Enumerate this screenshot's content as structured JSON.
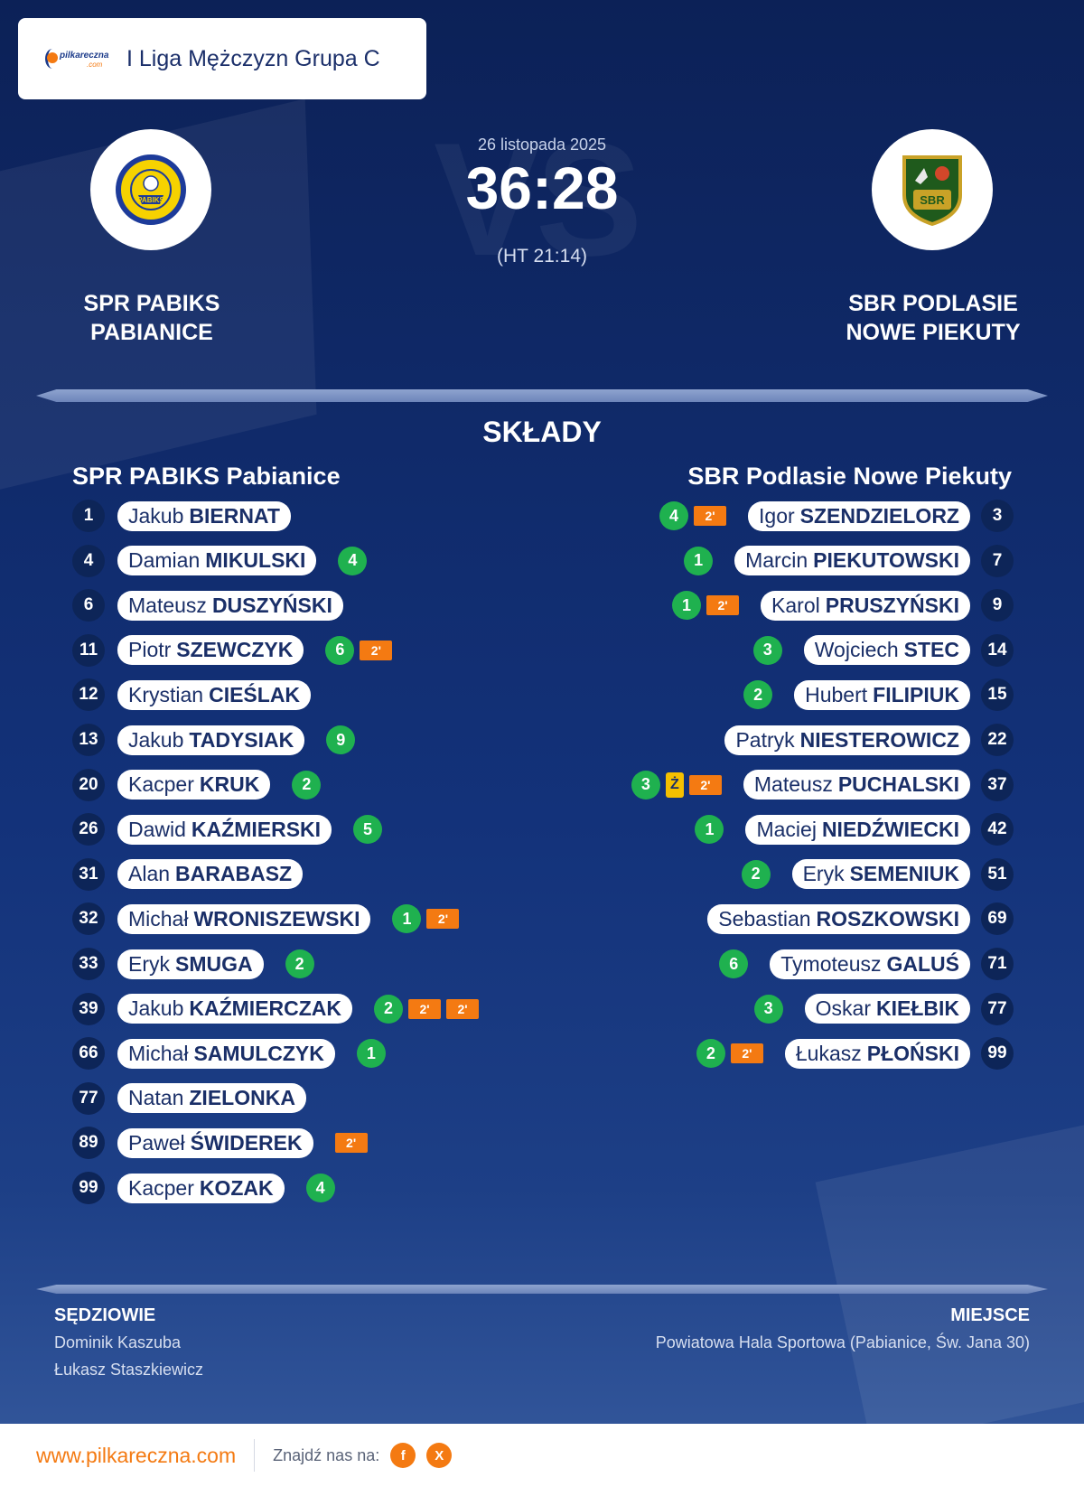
{
  "header": {
    "logo_text": "pilkareczna",
    "logo_sub": ".com",
    "league": "I Liga Mężczyzn Grupa C"
  },
  "match": {
    "date": "26 listopada 2025",
    "score": "36:28",
    "halftime": "(HT 21:14)",
    "watermark": "VS"
  },
  "home": {
    "name_line1": "SPR PABIKS",
    "name_line2": "PABIANICE",
    "title": "SPR PABIKS Pabianice",
    "crest_text": "PABIKS",
    "players": [
      {
        "number": "1",
        "first": "Jakub",
        "last": "BIERNAT",
        "goals": "",
        "yellow": "",
        "pens": []
      },
      {
        "number": "4",
        "first": "Damian",
        "last": "MIKULSKI",
        "goals": "4",
        "yellow": "",
        "pens": []
      },
      {
        "number": "6",
        "first": "Mateusz",
        "last": "DUSZYŃSKI",
        "goals": "",
        "yellow": "",
        "pens": []
      },
      {
        "number": "11",
        "first": "Piotr",
        "last": "SZEWCZYK",
        "goals": "6",
        "yellow": "",
        "pens": [
          "2'"
        ]
      },
      {
        "number": "12",
        "first": "Krystian",
        "last": "CIEŚLAK",
        "goals": "",
        "yellow": "",
        "pens": []
      },
      {
        "number": "13",
        "first": "Jakub",
        "last": "TADYSIAK",
        "goals": "9",
        "yellow": "",
        "pens": []
      },
      {
        "number": "20",
        "first": "Kacper",
        "last": "KRUK",
        "goals": "2",
        "yellow": "",
        "pens": []
      },
      {
        "number": "26",
        "first": "Dawid",
        "last": "KAŹMIERSKI",
        "goals": "5",
        "yellow": "",
        "pens": []
      },
      {
        "number": "31",
        "first": "Alan",
        "last": "BARABASZ",
        "goals": "",
        "yellow": "",
        "pens": []
      },
      {
        "number": "32",
        "first": "Michał",
        "last": "WRONISZEWSKI",
        "goals": "1",
        "yellow": "",
        "pens": [
          "2'"
        ]
      },
      {
        "number": "33",
        "first": "Eryk",
        "last": "SMUGA",
        "goals": "2",
        "yellow": "",
        "pens": []
      },
      {
        "number": "39",
        "first": "Jakub",
        "last": "KAŹMIERCZAK",
        "goals": "2",
        "yellow": "",
        "pens": [
          "2'",
          "2'"
        ]
      },
      {
        "number": "66",
        "first": "Michał",
        "last": "SAMULCZYK",
        "goals": "1",
        "yellow": "",
        "pens": []
      },
      {
        "number": "77",
        "first": "Natan",
        "last": "ZIELONKA",
        "goals": "",
        "yellow": "",
        "pens": []
      },
      {
        "number": "89",
        "first": "Paweł",
        "last": "ŚWIDEREK",
        "goals": "",
        "yellow": "",
        "pens": [
          "2'"
        ]
      },
      {
        "number": "99",
        "first": "Kacper",
        "last": "KOZAK",
        "goals": "4",
        "yellow": "",
        "pens": []
      }
    ]
  },
  "away": {
    "name_line1": "SBR PODLASIE",
    "name_line2": "NOWE PIEKUTY",
    "title": "SBR Podlasie Nowe Piekuty",
    "crest_text": "SBR",
    "players": [
      {
        "number": "3",
        "first": "Igor",
        "last": "SZENDZIELORZ",
        "goals": "4",
        "yellow": "",
        "pens": [
          "2'"
        ]
      },
      {
        "number": "7",
        "first": "Marcin",
        "last": "PIEKUTOWSKI",
        "goals": "1",
        "yellow": "",
        "pens": []
      },
      {
        "number": "9",
        "first": "Karol",
        "last": "PRUSZYŃSKI",
        "goals": "1",
        "yellow": "",
        "pens": [
          "2'"
        ]
      },
      {
        "number": "14",
        "first": "Wojciech",
        "last": "STEC",
        "goals": "3",
        "yellow": "",
        "pens": []
      },
      {
        "number": "15",
        "first": "Hubert",
        "last": "FILIPIUK",
        "goals": "2",
        "yellow": "",
        "pens": []
      },
      {
        "number": "22",
        "first": "Patryk",
        "last": "NIESTEROWICZ",
        "goals": "",
        "yellow": "",
        "pens": []
      },
      {
        "number": "37",
        "first": "Mateusz",
        "last": "PUCHALSKI",
        "goals": "3",
        "yellow": "Ż",
        "pens": [
          "2'"
        ]
      },
      {
        "number": "42",
        "first": "Maciej",
        "last": "NIEDŹWIECKI",
        "goals": "1",
        "yellow": "",
        "pens": []
      },
      {
        "number": "51",
        "first": "Eryk",
        "last": "SEMENIUK",
        "goals": "2",
        "yellow": "",
        "pens": []
      },
      {
        "number": "69",
        "first": "Sebastian",
        "last": "ROSZKOWSKI",
        "goals": "",
        "yellow": "",
        "pens": []
      },
      {
        "number": "71",
        "first": "Tymoteusz",
        "last": "GALUŚ",
        "goals": "6",
        "yellow": "",
        "pens": []
      },
      {
        "number": "77",
        "first": "Oskar",
        "last": "KIEŁBIK",
        "goals": "3",
        "yellow": "",
        "pens": []
      },
      {
        "number": "99",
        "first": "Łukasz",
        "last": "PŁOŃSKI",
        "goals": "2",
        "yellow": "",
        "pens": [
          "2'"
        ]
      }
    ]
  },
  "lineups_title": "SKŁADY",
  "referees": {
    "label": "SĘDZIOWIE",
    "names": [
      "Dominik Kaszuba",
      "Łukasz Staszkiewicz"
    ]
  },
  "venue": {
    "label": "MIEJSCE",
    "name": "Powiatowa Hala Sportowa (Pabianice, Św. Jana 30)"
  },
  "footer": {
    "site": "www.pilkareczna.com",
    "find_us": "Znajdź nas na:",
    "social": [
      {
        "icon": "facebook-icon",
        "glyph": "f"
      },
      {
        "icon": "x-icon",
        "glyph": "X"
      }
    ]
  },
  "colors": {
    "background": "#0e2560",
    "accent": "#f47a12",
    "goals": "#1fb14f",
    "yellow_card": "#f5c000",
    "number_badge": "#0d2558"
  }
}
